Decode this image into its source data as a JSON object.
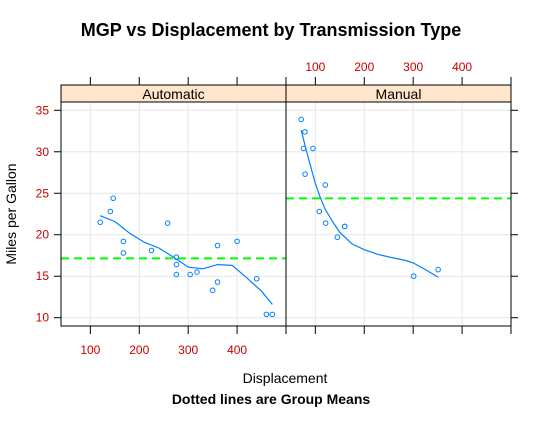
{
  "chart_data": {
    "type": "scatter",
    "title": "MGP vs Displacement by Transmission Type",
    "xlabel": "Displacement",
    "ylabel": "Miles per Gallon",
    "sub": "Dotted lines are Group Means",
    "xlim": [
      40,
      500
    ],
    "ylim": [
      9,
      36
    ],
    "xticks": [
      100,
      200,
      300,
      400
    ],
    "yticks": [
      10,
      15,
      20,
      25,
      30,
      35
    ],
    "grid": true,
    "colors": {
      "points": "#0080ff",
      "smooth": "#0080ff",
      "mean_line": "#00ff00",
      "tick_labels": "#cc0000",
      "strip_bg": "#ffe5cc",
      "grid": "#e6e6e6"
    },
    "panels": [
      {
        "name": "Automatic",
        "mean": 17.15,
        "points": [
          {
            "x": 120.1,
            "y": 21.5
          },
          {
            "x": 140.8,
            "y": 22.8
          },
          {
            "x": 146.7,
            "y": 24.4
          },
          {
            "x": 167.6,
            "y": 19.2
          },
          {
            "x": 167.6,
            "y": 17.8
          },
          {
            "x": 225,
            "y": 18.1
          },
          {
            "x": 258,
            "y": 21.4
          },
          {
            "x": 275.8,
            "y": 15.2
          },
          {
            "x": 275.8,
            "y": 17.3
          },
          {
            "x": 276,
            "y": 16.4
          },
          {
            "x": 304,
            "y": 15.2
          },
          {
            "x": 318,
            "y": 15.5
          },
          {
            "x": 350,
            "y": 13.3
          },
          {
            "x": 360,
            "y": 14.3
          },
          {
            "x": 360,
            "y": 18.7
          },
          {
            "x": 400,
            "y": 19.2
          },
          {
            "x": 440,
            "y": 14.7
          },
          {
            "x": 460,
            "y": 10.4
          },
          {
            "x": 472,
            "y": 10.4
          }
        ],
        "smooth": [
          {
            "x": 120,
            "y": 22.3
          },
          {
            "x": 150,
            "y": 21.6
          },
          {
            "x": 180,
            "y": 20.2
          },
          {
            "x": 210,
            "y": 19.1
          },
          {
            "x": 240,
            "y": 18.4
          },
          {
            "x": 270,
            "y": 17.3
          },
          {
            "x": 300,
            "y": 16.1
          },
          {
            "x": 330,
            "y": 15.9
          },
          {
            "x": 360,
            "y": 16.4
          },
          {
            "x": 390,
            "y": 16.3
          },
          {
            "x": 420,
            "y": 14.8
          },
          {
            "x": 450,
            "y": 13.2
          },
          {
            "x": 472,
            "y": 11.6
          }
        ]
      },
      {
        "name": "Manual",
        "mean": 24.39,
        "points": [
          {
            "x": 71.1,
            "y": 33.9
          },
          {
            "x": 75.7,
            "y": 30.4
          },
          {
            "x": 78.7,
            "y": 32.4
          },
          {
            "x": 79,
            "y": 27.3
          },
          {
            "x": 95.1,
            "y": 30.4
          },
          {
            "x": 108,
            "y": 22.8
          },
          {
            "x": 120.3,
            "y": 26
          },
          {
            "x": 121,
            "y": 21.4
          },
          {
            "x": 145,
            "y": 19.7
          },
          {
            "x": 160,
            "y": 21
          },
          {
            "x": 160,
            "y": 21
          },
          {
            "x": 301,
            "y": 15
          },
          {
            "x": 351,
            "y": 15.8
          }
        ],
        "smooth": [
          {
            "x": 71,
            "y": 32.6
          },
          {
            "x": 80,
            "y": 30.5
          },
          {
            "x": 90,
            "y": 28.3
          },
          {
            "x": 100,
            "y": 26.2
          },
          {
            "x": 110,
            "y": 24.5
          },
          {
            "x": 120,
            "y": 23.1
          },
          {
            "x": 135,
            "y": 21.6
          },
          {
            "x": 150,
            "y": 20.3
          },
          {
            "x": 175,
            "y": 18.9
          },
          {
            "x": 200,
            "y": 18.2
          },
          {
            "x": 230,
            "y": 17.6
          },
          {
            "x": 260,
            "y": 17.2
          },
          {
            "x": 285,
            "y": 16.9
          },
          {
            "x": 300,
            "y": 16.6
          },
          {
            "x": 325,
            "y": 15.8
          },
          {
            "x": 351,
            "y": 14.9
          }
        ]
      }
    ]
  }
}
